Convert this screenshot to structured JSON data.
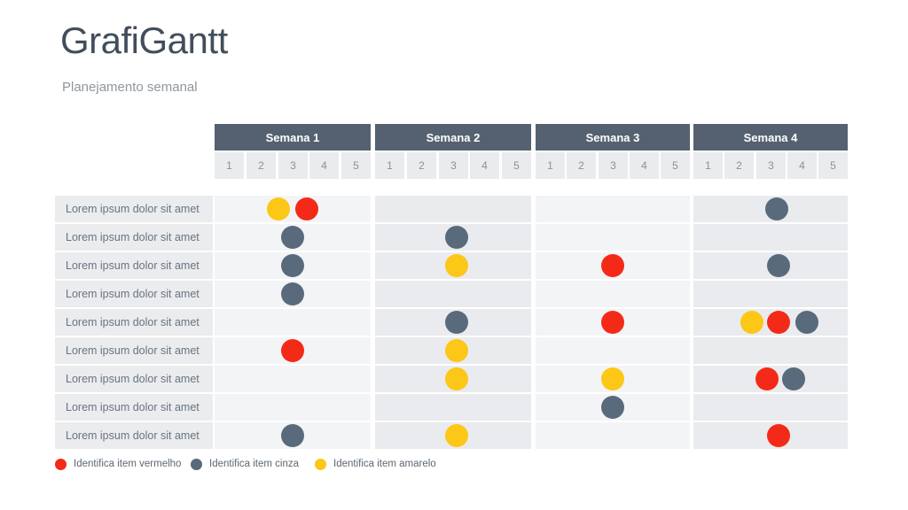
{
  "slide": {
    "title": "GrafiGantt",
    "subtitle": "Planejamento semanal"
  },
  "colors": {
    "red": "#f42a18",
    "gray": "#586a7c",
    "yellow": "#fcc716",
    "header_bg": "#556170",
    "band_light": "#f3f4f6",
    "band_dark": "#e9ebee"
  },
  "chart_data": {
    "type": "gantt-dot-matrix",
    "title": "GrafiGantt",
    "subtitle": "Planejamento semanal",
    "weeks": [
      "Semana 1",
      "Semana 2",
      "Semana 3",
      "Semana 4"
    ],
    "days_per_week": [
      "1",
      "2",
      "3",
      "4",
      "5"
    ],
    "legend": [
      {
        "color": "red",
        "label": "Identifica item vermelho"
      },
      {
        "color": "gray",
        "label": "Identifica item cinza"
      },
      {
        "color": "yellow",
        "label": "Identifica item amarelo"
      }
    ],
    "rows": [
      {
        "label": "Lorem ipsum dolor sit amet",
        "dots": [
          {
            "week": 1,
            "day": 2.55,
            "color": "yellow"
          },
          {
            "week": 1,
            "day": 3.45,
            "color": "red"
          },
          {
            "week": 4,
            "day": 3.2,
            "color": "gray"
          }
        ]
      },
      {
        "label": "Lorem ipsum dolor sit amet",
        "dots": [
          {
            "week": 1,
            "day": 3,
            "color": "gray"
          },
          {
            "week": 2,
            "day": 3.1,
            "color": "gray"
          }
        ]
      },
      {
        "label": "Lorem ipsum dolor sit amet",
        "dots": [
          {
            "week": 1,
            "day": 3,
            "color": "gray"
          },
          {
            "week": 2,
            "day": 3.1,
            "color": "yellow"
          },
          {
            "week": 3,
            "day": 3,
            "color": "red"
          },
          {
            "week": 4,
            "day": 3.25,
            "color": "gray"
          }
        ]
      },
      {
        "label": "Lorem ipsum dolor sit amet",
        "dots": [
          {
            "week": 1,
            "day": 3,
            "color": "gray"
          }
        ]
      },
      {
        "label": "Lorem ipsum dolor sit amet",
        "dots": [
          {
            "week": 2,
            "day": 3.1,
            "color": "gray"
          },
          {
            "week": 3,
            "day": 3,
            "color": "red"
          },
          {
            "week": 4,
            "day": 2.4,
            "color": "yellow"
          },
          {
            "week": 4,
            "day": 3.25,
            "color": "red"
          },
          {
            "week": 4,
            "day": 4.15,
            "color": "gray"
          }
        ]
      },
      {
        "label": "Lorem ipsum dolor sit amet",
        "dots": [
          {
            "week": 1,
            "day": 3,
            "color": "red"
          },
          {
            "week": 2,
            "day": 3.1,
            "color": "yellow"
          }
        ]
      },
      {
        "label": "Lorem ipsum dolor sit amet",
        "dots": [
          {
            "week": 2,
            "day": 3.1,
            "color": "yellow"
          },
          {
            "week": 3,
            "day": 3,
            "color": "yellow"
          },
          {
            "week": 4,
            "day": 2.9,
            "color": "red"
          },
          {
            "week": 4,
            "day": 3.75,
            "color": "gray"
          }
        ]
      },
      {
        "label": "Lorem ipsum dolor sit amet",
        "dots": [
          {
            "week": 3,
            "day": 3,
            "color": "gray"
          }
        ]
      },
      {
        "label": "Lorem ipsum dolor sit amet",
        "dots": [
          {
            "week": 1,
            "day": 3,
            "color": "gray"
          },
          {
            "week": 2,
            "day": 3.1,
            "color": "yellow"
          },
          {
            "week": 4,
            "day": 3.25,
            "color": "red"
          }
        ]
      }
    ]
  }
}
